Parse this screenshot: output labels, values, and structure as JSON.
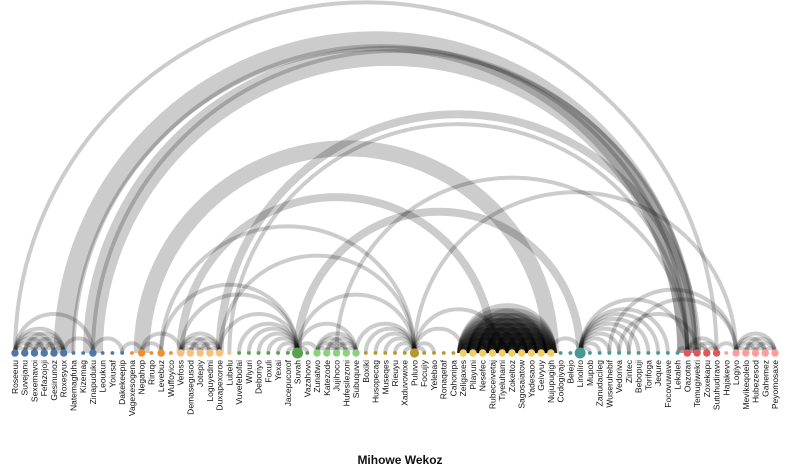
{
  "title": "Mihowe Wekoz",
  "colors": {
    "arc": "#000000",
    "groups": [
      "#4e79a7",
      "#f28e2b",
      "#f9c07a",
      "#59a14f",
      "#8cd17d",
      "#b6992d",
      "#f1ce63",
      "#499894",
      "#e15759",
      "#ff9d9a"
    ]
  },
  "chart_data": {
    "type": "arc-diagram",
    "title": "Mihowe Wekoz",
    "nodes": [
      {
        "name": "Roseeuu",
        "group": 0,
        "size": 3
      },
      {
        "name": "Suvejanu",
        "group": 0,
        "size": 3
      },
      {
        "name": "Sexemavoi",
        "group": 0,
        "size": 3
      },
      {
        "name": "Fefazojoji",
        "group": 0,
        "size": 3
      },
      {
        "name": "Gesinunoz",
        "group": 0,
        "size": 3
      },
      {
        "name": "Roxesyux",
        "group": 0,
        "size": 3
      },
      {
        "name": "Natemagfuha",
        "group": 0,
        "size": 1
      },
      {
        "name": "Kizemag",
        "group": 0,
        "size": 1
      },
      {
        "name": "Zinapuduku",
        "group": 0,
        "size": 3
      },
      {
        "name": "Leoukun",
        "group": 0,
        "size": 1
      },
      {
        "name": "Yoiusaf",
        "group": 0,
        "size": 1
      },
      {
        "name": "Dakekeepip",
        "group": 0,
        "size": 1
      },
      {
        "name": "Vagexesogena",
        "group": 1,
        "size": 1
      },
      {
        "name": "Negahop",
        "group": 1,
        "size": 3
      },
      {
        "name": "Riruqo",
        "group": 1,
        "size": 1
      },
      {
        "name": "Levebuz",
        "group": 1,
        "size": 3
      },
      {
        "name": "Wuffoyico",
        "group": 1,
        "size": 1
      },
      {
        "name": "Vefoss",
        "group": 2,
        "size": 3
      },
      {
        "name": "Demasegusod",
        "group": 2,
        "size": 3
      },
      {
        "name": "Jotepiy",
        "group": 2,
        "size": 3
      },
      {
        "name": "Loguyedmi",
        "group": 2,
        "size": 3
      },
      {
        "name": "Duxapexoroe",
        "group": 2,
        "size": 3
      },
      {
        "name": "Lubelu",
        "group": 2,
        "size": 1
      },
      {
        "name": "Vuvefebofai",
        "group": 3,
        "size": 1
      },
      {
        "name": "Wiyuri",
        "group": 3,
        "size": 1
      },
      {
        "name": "Deboriyo",
        "group": 3,
        "size": 1
      },
      {
        "name": "Foxuli",
        "group": 3,
        "size": 1
      },
      {
        "name": "Yexai",
        "group": 3,
        "size": 1
      },
      {
        "name": "Jacepucorof",
        "group": 3,
        "size": 1
      },
      {
        "name": "Suvah",
        "group": 3,
        "size": 5
      },
      {
        "name": "Vazahovo",
        "group": 3,
        "size": 1
      },
      {
        "name": "Zunatwo",
        "group": 4,
        "size": 3
      },
      {
        "name": "Katezode",
        "group": 4,
        "size": 3
      },
      {
        "name": "Jujihoco",
        "group": 4,
        "size": 3
      },
      {
        "name": "Hufesilezoni",
        "group": 4,
        "size": 3
      },
      {
        "name": "Subuquve",
        "group": 4,
        "size": 3
      },
      {
        "name": "Boxiki",
        "group": 5,
        "size": 1
      },
      {
        "name": "Husopecag",
        "group": 5,
        "size": 1
      },
      {
        "name": "Museqes",
        "group": 5,
        "size": 1
      },
      {
        "name": "Rieuyu",
        "group": 5,
        "size": 1
      },
      {
        "name": "Xaduvowixe",
        "group": 5,
        "size": 1
      },
      {
        "name": "Puluvo",
        "group": 5,
        "size": 4
      },
      {
        "name": "Focujiy",
        "group": 5,
        "size": 1
      },
      {
        "name": "Yelebao",
        "group": 5,
        "size": 1
      },
      {
        "name": "Ronaqetaf",
        "group": 5,
        "size": 1
      },
      {
        "name": "Cahonipa",
        "group": 5,
        "size": 1
      },
      {
        "name": "Zeligaxes",
        "group": 6,
        "size": 3
      },
      {
        "name": "Pilayuni",
        "group": 6,
        "size": 3
      },
      {
        "name": "Nesefec",
        "group": 6,
        "size": 3
      },
      {
        "name": "Rubeceivetaj",
        "group": 6,
        "size": 3
      },
      {
        "name": "Tiyeluhami",
        "group": 6,
        "size": 3
      },
      {
        "name": "Zokeltoz",
        "group": 6,
        "size": 3
      },
      {
        "name": "Sagosaiatow",
        "group": 6,
        "size": 3
      },
      {
        "name": "Yadesaoo",
        "group": 6,
        "size": 3
      },
      {
        "name": "Geivyuy",
        "group": 6,
        "size": 3
      },
      {
        "name": "Nujupugigh",
        "group": 6,
        "size": 3
      },
      {
        "name": "Codogiyajo",
        "group": 7,
        "size": 1
      },
      {
        "name": "Belejo",
        "group": 7,
        "size": 1
      },
      {
        "name": "Linoliro",
        "group": 7,
        "size": 5
      },
      {
        "name": "Mupob",
        "group": 7,
        "size": 1
      },
      {
        "name": "Zanudacileg",
        "group": 7,
        "size": 1
      },
      {
        "name": "Wuseruhebif",
        "group": 7,
        "size": 1
      },
      {
        "name": "Vedoriva",
        "group": 7,
        "size": 1
      },
      {
        "name": "Zintec",
        "group": 7,
        "size": 1
      },
      {
        "name": "Bebopuji",
        "group": 7,
        "size": 1
      },
      {
        "name": "Torifoga",
        "group": 7,
        "size": 1
      },
      {
        "name": "Jequre",
        "group": 7,
        "size": 1
      },
      {
        "name": "Focovuwave",
        "group": 7,
        "size": 1
      },
      {
        "name": "Lekaleh",
        "group": 7,
        "size": 1
      },
      {
        "name": "Oazotan",
        "group": 8,
        "size": 3
      },
      {
        "name": "Temugiwekri",
        "group": 8,
        "size": 3
      },
      {
        "name": "Zoxekapu",
        "group": 8,
        "size": 3
      },
      {
        "name": "Sutuhudiravo",
        "group": 8,
        "size": 3
      },
      {
        "name": "Hajakevo",
        "group": 9,
        "size": 1
      },
      {
        "name": "Logiyo",
        "group": 9,
        "size": 3
      },
      {
        "name": "Mevikeqolelo",
        "group": 9,
        "size": 3
      },
      {
        "name": "Hubezesod",
        "group": 9,
        "size": 3
      },
      {
        "name": "Gahemez",
        "group": 9,
        "size": 3
      },
      {
        "name": "Peyomosaxe",
        "group": 9,
        "size": 3
      }
    ],
    "links": [
      {
        "source": 0,
        "target": 1,
        "value": 1
      },
      {
        "source": 0,
        "target": 2,
        "value": 1
      },
      {
        "source": 0,
        "target": 3,
        "value": 1
      },
      {
        "source": 0,
        "target": 4,
        "value": 1
      },
      {
        "source": 0,
        "target": 5,
        "value": 1
      },
      {
        "source": 1,
        "target": 2,
        "value": 1
      },
      {
        "source": 1,
        "target": 3,
        "value": 1
      },
      {
        "source": 1,
        "target": 4,
        "value": 1
      },
      {
        "source": 1,
        "target": 5,
        "value": 1
      },
      {
        "source": 2,
        "target": 3,
        "value": 1
      },
      {
        "source": 2,
        "target": 4,
        "value": 1
      },
      {
        "source": 2,
        "target": 5,
        "value": 1
      },
      {
        "source": 3,
        "target": 4,
        "value": 1
      },
      {
        "source": 3,
        "target": 5,
        "value": 1
      },
      {
        "source": 4,
        "target": 5,
        "value": 1
      },
      {
        "source": 0,
        "target": 8,
        "value": 1
      },
      {
        "source": 5,
        "target": 8,
        "value": 1
      },
      {
        "source": 8,
        "target": 11,
        "value": 1
      },
      {
        "source": 11,
        "target": 13,
        "value": 1
      },
      {
        "source": 13,
        "target": 15,
        "value": 1
      },
      {
        "source": 13,
        "target": 17,
        "value": 1
      },
      {
        "source": 17,
        "target": 18,
        "value": 1
      },
      {
        "source": 17,
        "target": 19,
        "value": 1
      },
      {
        "source": 17,
        "target": 20,
        "value": 1
      },
      {
        "source": 17,
        "target": 21,
        "value": 1
      },
      {
        "source": 18,
        "target": 19,
        "value": 1
      },
      {
        "source": 18,
        "target": 20,
        "value": 1
      },
      {
        "source": 18,
        "target": 21,
        "value": 1
      },
      {
        "source": 19,
        "target": 20,
        "value": 1
      },
      {
        "source": 19,
        "target": 21,
        "value": 1
      },
      {
        "source": 20,
        "target": 21,
        "value": 1
      },
      {
        "source": 15,
        "target": 29,
        "value": 1
      },
      {
        "source": 17,
        "target": 29,
        "value": 1
      },
      {
        "source": 21,
        "target": 29,
        "value": 1
      },
      {
        "source": 23,
        "target": 29,
        "value": 1
      },
      {
        "source": 24,
        "target": 29,
        "value": 1
      },
      {
        "source": 25,
        "target": 29,
        "value": 1
      },
      {
        "source": 26,
        "target": 29,
        "value": 1
      },
      {
        "source": 27,
        "target": 29,
        "value": 1
      },
      {
        "source": 28,
        "target": 29,
        "value": 1
      },
      {
        "source": 29,
        "target": 30,
        "value": 1
      },
      {
        "source": 29,
        "target": 31,
        "value": 1
      },
      {
        "source": 29,
        "target": 35,
        "value": 1
      },
      {
        "source": 31,
        "target": 32,
        "value": 1
      },
      {
        "source": 31,
        "target": 33,
        "value": 1
      },
      {
        "source": 31,
        "target": 34,
        "value": 1
      },
      {
        "source": 31,
        "target": 35,
        "value": 1
      },
      {
        "source": 32,
        "target": 33,
        "value": 1
      },
      {
        "source": 32,
        "target": 34,
        "value": 1
      },
      {
        "source": 32,
        "target": 35,
        "value": 1
      },
      {
        "source": 33,
        "target": 34,
        "value": 1
      },
      {
        "source": 33,
        "target": 35,
        "value": 1
      },
      {
        "source": 34,
        "target": 35,
        "value": 1
      },
      {
        "source": 29,
        "target": 41,
        "value": 1
      },
      {
        "source": 35,
        "target": 41,
        "value": 1
      },
      {
        "source": 36,
        "target": 41,
        "value": 1
      },
      {
        "source": 37,
        "target": 41,
        "value": 1
      },
      {
        "source": 38,
        "target": 41,
        "value": 1
      },
      {
        "source": 39,
        "target": 41,
        "value": 1
      },
      {
        "source": 40,
        "target": 41,
        "value": 1
      },
      {
        "source": 41,
        "target": 42,
        "value": 1
      },
      {
        "source": 41,
        "target": 43,
        "value": 1
      },
      {
        "source": 41,
        "target": 46,
        "value": 1
      },
      {
        "source": 41,
        "target": 50,
        "value": 1
      },
      {
        "source": 46,
        "target": 47,
        "value": 3
      },
      {
        "source": 46,
        "target": 48,
        "value": 3
      },
      {
        "source": 46,
        "target": 49,
        "value": 3
      },
      {
        "source": 46,
        "target": 50,
        "value": 3
      },
      {
        "source": 46,
        "target": 51,
        "value": 3
      },
      {
        "source": 46,
        "target": 52,
        "value": 3
      },
      {
        "source": 46,
        "target": 53,
        "value": 3
      },
      {
        "source": 46,
        "target": 54,
        "value": 3
      },
      {
        "source": 46,
        "target": 55,
        "value": 3
      },
      {
        "source": 47,
        "target": 48,
        "value": 3
      },
      {
        "source": 47,
        "target": 49,
        "value": 3
      },
      {
        "source": 47,
        "target": 50,
        "value": 3
      },
      {
        "source": 47,
        "target": 51,
        "value": 3
      },
      {
        "source": 47,
        "target": 52,
        "value": 3
      },
      {
        "source": 47,
        "target": 53,
        "value": 3
      },
      {
        "source": 47,
        "target": 54,
        "value": 3
      },
      {
        "source": 47,
        "target": 55,
        "value": 3
      },
      {
        "source": 48,
        "target": 49,
        "value": 3
      },
      {
        "source": 48,
        "target": 50,
        "value": 3
      },
      {
        "source": 48,
        "target": 51,
        "value": 3
      },
      {
        "source": 48,
        "target": 52,
        "value": 3
      },
      {
        "source": 48,
        "target": 53,
        "value": 3
      },
      {
        "source": 48,
        "target": 54,
        "value": 3
      },
      {
        "source": 48,
        "target": 55,
        "value": 3
      },
      {
        "source": 49,
        "target": 50,
        "value": 3
      },
      {
        "source": 49,
        "target": 51,
        "value": 3
      },
      {
        "source": 49,
        "target": 52,
        "value": 3
      },
      {
        "source": 49,
        "target": 53,
        "value": 3
      },
      {
        "source": 49,
        "target": 54,
        "value": 3
      },
      {
        "source": 49,
        "target": 55,
        "value": 3
      },
      {
        "source": 50,
        "target": 51,
        "value": 3
      },
      {
        "source": 50,
        "target": 52,
        "value": 3
      },
      {
        "source": 50,
        "target": 53,
        "value": 3
      },
      {
        "source": 50,
        "target": 54,
        "value": 3
      },
      {
        "source": 50,
        "target": 55,
        "value": 3
      },
      {
        "source": 51,
        "target": 52,
        "value": 3
      },
      {
        "source": 51,
        "target": 53,
        "value": 3
      },
      {
        "source": 51,
        "target": 54,
        "value": 3
      },
      {
        "source": 51,
        "target": 55,
        "value": 3
      },
      {
        "source": 52,
        "target": 53,
        "value": 3
      },
      {
        "source": 52,
        "target": 54,
        "value": 3
      },
      {
        "source": 52,
        "target": 55,
        "value": 3
      },
      {
        "source": 53,
        "target": 54,
        "value": 3
      },
      {
        "source": 53,
        "target": 55,
        "value": 3
      },
      {
        "source": 54,
        "target": 55,
        "value": 3
      },
      {
        "source": 55,
        "target": 58,
        "value": 1
      },
      {
        "source": 58,
        "target": 59,
        "value": 1
      },
      {
        "source": 58,
        "target": 60,
        "value": 1
      },
      {
        "source": 58,
        "target": 61,
        "value": 1
      },
      {
        "source": 58,
        "target": 62,
        "value": 1
      },
      {
        "source": 58,
        "target": 63,
        "value": 1
      },
      {
        "source": 58,
        "target": 64,
        "value": 1
      },
      {
        "source": 58,
        "target": 65,
        "value": 1
      },
      {
        "source": 58,
        "target": 66,
        "value": 1
      },
      {
        "source": 58,
        "target": 67,
        "value": 1
      },
      {
        "source": 58,
        "target": 69,
        "value": 1
      },
      {
        "source": 68,
        "target": 69,
        "value": 1
      },
      {
        "source": 69,
        "target": 70,
        "value": 1
      },
      {
        "source": 69,
        "target": 71,
        "value": 1
      },
      {
        "source": 69,
        "target": 72,
        "value": 1
      },
      {
        "source": 70,
        "target": 71,
        "value": 1
      },
      {
        "source": 70,
        "target": 72,
        "value": 1
      },
      {
        "source": 71,
        "target": 72,
        "value": 1
      },
      {
        "source": 72,
        "target": 74,
        "value": 1
      },
      {
        "source": 74,
        "target": 75,
        "value": 1
      },
      {
        "source": 74,
        "target": 76,
        "value": 1
      },
      {
        "source": 74,
        "target": 77,
        "value": 1
      },
      {
        "source": 74,
        "target": 78,
        "value": 1
      },
      {
        "source": 75,
        "target": 76,
        "value": 1
      },
      {
        "source": 75,
        "target": 77,
        "value": 1
      },
      {
        "source": 75,
        "target": 78,
        "value": 1
      },
      {
        "source": 76,
        "target": 77,
        "value": 1
      },
      {
        "source": 76,
        "target": 78,
        "value": 1
      },
      {
        "source": 77,
        "target": 78,
        "value": 1
      },
      {
        "source": 61,
        "target": 74,
        "value": 1
      },
      {
        "source": 63,
        "target": 74,
        "value": 1
      },
      {
        "source": 62,
        "target": 70,
        "value": 1
      },
      {
        "source": 8,
        "target": 69,
        "value": 5
      },
      {
        "source": 5,
        "target": 69,
        "value": 5
      },
      {
        "source": 13,
        "target": 55,
        "value": 4
      },
      {
        "source": 0,
        "target": 72,
        "value": 1
      },
      {
        "source": 8,
        "target": 70,
        "value": 1
      },
      {
        "source": 15,
        "target": 41,
        "value": 1
      },
      {
        "source": 17,
        "target": 49,
        "value": 2
      },
      {
        "source": 29,
        "target": 58,
        "value": 2
      },
      {
        "source": 21,
        "target": 70,
        "value": 2
      },
      {
        "source": 22,
        "target": 69,
        "value": 1
      },
      {
        "source": 33,
        "target": 69,
        "value": 1
      },
      {
        "source": 41,
        "target": 74,
        "value": 1
      },
      {
        "source": 21,
        "target": 41,
        "value": 1
      },
      {
        "source": 6,
        "target": 69,
        "value": 1
      }
    ]
  }
}
